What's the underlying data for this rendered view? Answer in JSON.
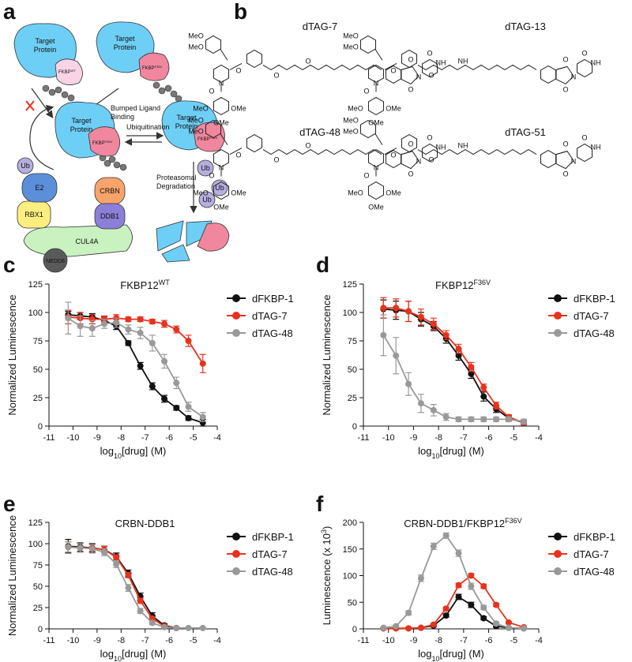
{
  "panel_labels": [
    "a",
    "b",
    "c",
    "d",
    "e",
    "f"
  ],
  "diagram": {
    "target": "Target",
    "protein": "Protein",
    "fkbp": "FKBP",
    "wt": "WT",
    "f36v": "F36V",
    "bumped_ligand": "Bumped Ligand",
    "binding": "Binding",
    "ubiquitination": "Ubiquitination",
    "proteasomal": "Proteasomal",
    "degradation": "Degradation",
    "ub": "Ub",
    "e2": "E2",
    "rbx1": "RBX1",
    "crbn": "CRBN",
    "ddb1": "DDB1",
    "cul4a": "CUL4A",
    "nedd8": "NEDD8"
  },
  "structures": {
    "names": [
      "dTAG-7",
      "dTAG-13",
      "dTAG-48",
      "dTAG-51"
    ],
    "labels": {
      "meo": "MeO",
      "ome": "OMe",
      "o": "O",
      "n": "N",
      "nh": "NH"
    }
  },
  "chart_data": [
    {
      "type": "line",
      "title": "FKBP12",
      "title_sup": "WT",
      "ylabel": [
        "Normalized Luminescence"
      ],
      "xlabel": [
        "log",
        "10",
        "[drug] (M)"
      ],
      "x": [
        -10.2,
        -9.7,
        -9.2,
        -8.7,
        -8.2,
        -7.7,
        -7.2,
        -6.7,
        -6.2,
        -5.7,
        -5.2,
        -4.6
      ],
      "xlim": [
        -11,
        -4
      ],
      "xticks": [
        -11,
        -10,
        -9,
        -8,
        -7,
        -6,
        -5,
        -4
      ],
      "ylim": [
        0,
        125
      ],
      "yticks": [
        0,
        25,
        50,
        75,
        100,
        125
      ],
      "series": [
        {
          "name": "dFKBP-1",
          "color": "#111111",
          "values": [
            98,
            97,
            96,
            93,
            88,
            73,
            53,
            35,
            24,
            16,
            7,
            3
          ],
          "errors": [
            3,
            3,
            3,
            3,
            3,
            2,
            3,
            3,
            3,
            2,
            2,
            3
          ]
        },
        {
          "name": "dTAG-7",
          "color": "#e8321e",
          "values": [
            96,
            95,
            94,
            94,
            95,
            94,
            94,
            92,
            90,
            85,
            75,
            55
          ],
          "errors": [
            6,
            5,
            4,
            3,
            3,
            2,
            2,
            2,
            3,
            3,
            5,
            8
          ]
        },
        {
          "name": "dTAG-48",
          "color": "#999999",
          "values": [
            95,
            88,
            86,
            90,
            91,
            85,
            82,
            73,
            57,
            38,
            17,
            8
          ],
          "errors": [
            14,
            9,
            7,
            4,
            4,
            4,
            5,
            7,
            6,
            5,
            4,
            4
          ]
        }
      ]
    },
    {
      "type": "line",
      "title": "FKBP12",
      "title_sup": "F36V",
      "ylabel": [
        "Normalized Luminescence"
      ],
      "xlabel": [
        "log",
        "10",
        "[drug] (M)"
      ],
      "x": [
        -10.2,
        -9.7,
        -9.2,
        -8.7,
        -8.2,
        -7.7,
        -7.2,
        -6.7,
        -6.2,
        -5.7,
        -5.2,
        -4.6
      ],
      "xlim": [
        -11,
        -4
      ],
      "xticks": [
        -11,
        -10,
        -9,
        -8,
        -7,
        -6,
        -5,
        -4
      ],
      "ylim": [
        0,
        125
      ],
      "yticks": [
        0,
        25,
        50,
        75,
        100,
        125
      ],
      "series": [
        {
          "name": "dFKBP-1",
          "color": "#111111",
          "values": [
            103,
            102,
            101,
            94,
            88,
            77,
            62,
            46,
            26,
            15,
            7,
            3
          ],
          "errors": [
            8,
            8,
            9,
            6,
            4,
            4,
            4,
            4,
            4,
            3,
            2,
            2
          ]
        },
        {
          "name": "dTAG-7",
          "color": "#e8321e",
          "values": [
            104,
            104,
            101,
            96,
            90,
            80,
            68,
            52,
            34,
            18,
            8,
            3
          ],
          "errors": [
            9,
            8,
            9,
            7,
            5,
            4,
            4,
            4,
            3,
            3,
            2,
            2
          ]
        },
        {
          "name": "dTAG-48",
          "color": "#999999",
          "values": [
            80,
            62,
            37,
            20,
            14,
            8,
            6,
            6,
            6,
            6,
            6,
            4
          ],
          "errors": [
            18,
            16,
            10,
            8,
            5,
            3,
            2,
            2,
            2,
            2,
            2,
            2
          ]
        }
      ]
    },
    {
      "type": "line",
      "title": "CRBN-DDB1",
      "ylabel": [
        "Normalized Luminescence"
      ],
      "xlabel": [
        "log",
        "10",
        "[drug] (M)"
      ],
      "x": [
        -10.2,
        -9.7,
        -9.2,
        -8.7,
        -8.2,
        -7.7,
        -7.2,
        -6.7,
        -6.2,
        -5.7,
        -5.2,
        -4.6
      ],
      "xlim": [
        -11,
        -4
      ],
      "xticks": [
        -11,
        -10,
        -9,
        -8,
        -7,
        -6,
        -5,
        -4
      ],
      "ylim": [
        0,
        125
      ],
      "yticks": [
        0,
        25,
        50,
        75,
        100,
        125
      ],
      "series": [
        {
          "name": "dFKBP-1",
          "color": "#111111",
          "values": [
            97,
            96,
            95,
            93,
            85,
            65,
            38,
            15,
            4,
            1,
            null,
            null
          ],
          "errors": [
            8,
            5,
            5,
            4,
            4,
            4,
            4,
            4,
            2,
            1,
            null,
            null
          ]
        },
        {
          "name": "dTAG-7",
          "color": "#e8321e",
          "values": [
            96,
            95,
            95,
            93,
            84,
            63,
            33,
            12,
            3,
            1,
            null,
            null
          ],
          "errors": [
            6,
            5,
            4,
            4,
            3,
            3,
            3,
            2,
            1,
            1,
            null,
            null
          ]
        },
        {
          "name": "dTAG-48",
          "color": "#999999",
          "values": [
            96,
            95,
            94,
            90,
            76,
            48,
            21,
            7,
            2,
            1,
            1,
            1
          ],
          "errors": [
            6,
            5,
            5,
            4,
            4,
            4,
            3,
            2,
            1,
            1,
            1,
            1
          ]
        }
      ]
    },
    {
      "type": "line",
      "title": "CRBN-DDB1/FKBP12",
      "title_sup": "F36V",
      "ylabel": [
        "Luminescence (x 10",
        "3",
        ")"
      ],
      "xlabel": [
        "log",
        "10",
        "[drug] (M)"
      ],
      "x": [
        -10.2,
        -9.7,
        -9.2,
        -8.7,
        -8.2,
        -7.7,
        -7.2,
        -6.7,
        -6.2,
        -5.7,
        -5.2,
        -4.6
      ],
      "xlim": [
        -11,
        -4
      ],
      "xticks": [
        -11,
        -10,
        -9,
        -8,
        -7,
        -6,
        -5,
        -4
      ],
      "ylim": [
        0,
        200
      ],
      "yticks": [
        0,
        50,
        100,
        150,
        200
      ],
      "series": [
        {
          "name": "dFKBP-1",
          "color": "#111111",
          "values": [
            1,
            1,
            1,
            2,
            6,
            25,
            60,
            45,
            20,
            5,
            2,
            1
          ],
          "errors": [
            1,
            1,
            1,
            1,
            2,
            3,
            5,
            5,
            3,
            2,
            1,
            1
          ]
        },
        {
          "name": "dTAG-7",
          "color": "#e8321e",
          "values": [
            1,
            1,
            1,
            2,
            8,
            38,
            82,
            100,
            80,
            45,
            12,
            3
          ],
          "errors": [
            1,
            1,
            1,
            1,
            2,
            3,
            4,
            4,
            4,
            3,
            2,
            1
          ]
        },
        {
          "name": "dTAG-48",
          "color": "#999999",
          "values": [
            2,
            5,
            30,
            95,
            155,
            175,
            142,
            80,
            40,
            10,
            2,
            1
          ],
          "errors": [
            1,
            2,
            4,
            6,
            6,
            5,
            6,
            6,
            4,
            3,
            1,
            1
          ]
        }
      ]
    }
  ]
}
